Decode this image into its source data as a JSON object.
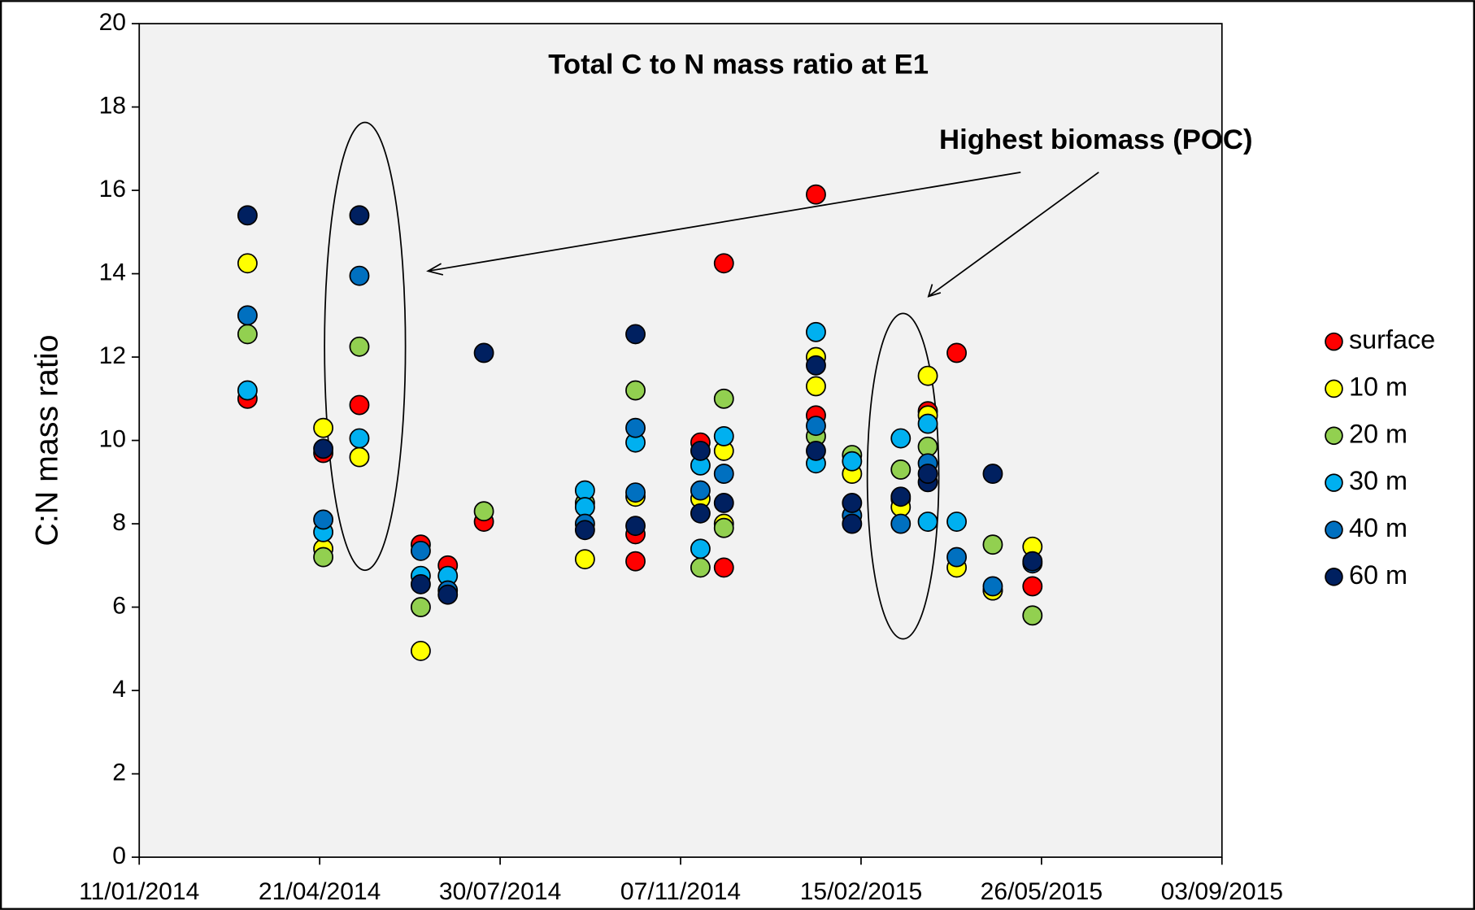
{
  "chart_data": {
    "type": "scatter",
    "title": "Total C to N mass ratio at E1",
    "y_label": "C:N mass ratio",
    "annotation": "Highest biomass (POC)",
    "xlim": [
      "11/01/2014",
      "03/09/2015"
    ],
    "xticks": [
      "11/01/2014",
      "21/04/2014",
      "30/07/2014",
      "07/11/2014",
      "15/02/2015",
      "26/05/2015",
      "03/09/2015"
    ],
    "ylim": [
      0,
      20
    ],
    "yticks": [
      0,
      2,
      4,
      6,
      8,
      10,
      12,
      14,
      16,
      18,
      20
    ],
    "legend": "right",
    "series": [
      {
        "name": "surface",
        "color": "#ff0000",
        "x": [
          "12/03/2014",
          "23/04/2014",
          "13/05/2014",
          "16/06/2014",
          "01/07/2014",
          "21/07/2014",
          "13/10/2014",
          "13/10/2014",
          "18/11/2014",
          "01/12/2014",
          "01/12/2014",
          "21/01/2015",
          "21/01/2015",
          "09/03/2015",
          "24/03/2015",
          "09/04/2015",
          "29/04/2015",
          "21/05/2015"
        ],
        "values": [
          11.0,
          9.7,
          10.85,
          7.5,
          7.0,
          8.05,
          7.75,
          7.1,
          9.95,
          14.25,
          6.95,
          15.9,
          10.6,
          8.6,
          10.7,
          12.1,
          6.4,
          6.5
        ]
      },
      {
        "name": "10 m",
        "color": "#ffff00",
        "x": [
          "12/03/2014",
          "23/04/2014",
          "23/04/2014",
          "13/05/2014",
          "16/06/2014",
          "15/09/2014",
          "13/10/2014",
          "18/11/2014",
          "01/12/2014",
          "01/12/2014",
          "21/01/2015",
          "21/01/2015",
          "10/02/2015",
          "09/03/2015",
          "24/03/2015",
          "24/03/2015",
          "09/04/2015",
          "29/04/2015",
          "21/05/2015"
        ],
        "values": [
          14.25,
          10.3,
          7.4,
          9.6,
          4.95,
          7.15,
          8.65,
          8.6,
          9.75,
          8.0,
          12.0,
          11.3,
          9.2,
          8.4,
          11.55,
          10.6,
          6.95,
          6.4,
          7.45
        ]
      },
      {
        "name": "20 m",
        "color": "#92d050",
        "x": [
          "12/03/2014",
          "23/04/2014",
          "13/05/2014",
          "16/06/2014",
          "21/07/2014",
          "15/09/2014",
          "13/10/2014",
          "18/11/2014",
          "01/12/2014",
          "01/12/2014",
          "21/01/2015",
          "10/02/2015",
          "09/03/2015",
          "24/03/2015",
          "29/04/2015",
          "21/05/2015"
        ],
        "values": [
          12.55,
          7.2,
          12.25,
          6.0,
          8.3,
          8.5,
          11.2,
          6.95,
          11.0,
          7.9,
          10.1,
          9.65,
          9.3,
          9.85,
          7.5,
          5.8
        ]
      },
      {
        "name": "30 m",
        "color": "#00b0f0",
        "x": [
          "12/03/2014",
          "23/04/2014",
          "13/05/2014",
          "16/06/2014",
          "01/07/2014",
          "15/09/2014",
          "15/09/2014",
          "13/10/2014",
          "18/11/2014",
          "18/11/2014",
          "01/12/2014",
          "21/01/2015",
          "21/01/2015",
          "10/02/2015",
          "09/03/2015",
          "24/03/2015",
          "24/03/2015",
          "09/04/2015"
        ],
        "values": [
          11.2,
          7.8,
          10.05,
          6.75,
          6.75,
          8.8,
          8.4,
          9.95,
          9.4,
          7.4,
          10.1,
          12.6,
          9.45,
          9.5,
          10.05,
          10.4,
          8.05,
          8.05
        ]
      },
      {
        "name": "40 m",
        "color": "#0070c0",
        "x": [
          "12/03/2014",
          "23/04/2014",
          "13/05/2014",
          "16/06/2014",
          "01/07/2014",
          "15/09/2014",
          "13/10/2014",
          "13/10/2014",
          "18/11/2014",
          "01/12/2014",
          "21/01/2015",
          "10/02/2015",
          "09/03/2015",
          "24/03/2015",
          "09/04/2015",
          "29/04/2015",
          "21/05/2015"
        ],
        "values": [
          13.0,
          8.1,
          13.95,
          7.35,
          6.4,
          8.0,
          10.3,
          8.75,
          8.8,
          9.2,
          10.35,
          8.2,
          8.0,
          9.45,
          7.2,
          6.5,
          7.05
        ]
      },
      {
        "name": "60 m",
        "color": "#002060",
        "x": [
          "12/03/2014",
          "23/04/2014",
          "13/05/2014",
          "16/06/2014",
          "01/07/2014",
          "21/07/2014",
          "15/09/2014",
          "13/10/2014",
          "13/10/2014",
          "18/11/2014",
          "18/11/2014",
          "01/12/2014",
          "21/01/2015",
          "21/01/2015",
          "10/02/2015",
          "10/02/2015",
          "09/03/2015",
          "24/03/2015",
          "24/03/2015",
          "29/04/2015",
          "21/05/2015"
        ],
        "values": [
          15.4,
          9.8,
          15.4,
          6.55,
          6.3,
          12.1,
          7.85,
          12.55,
          7.95,
          9.75,
          8.25,
          8.5,
          11.8,
          9.75,
          8.5,
          8.0,
          8.65,
          9.0,
          9.2,
          9.2,
          7.1
        ]
      }
    ]
  }
}
